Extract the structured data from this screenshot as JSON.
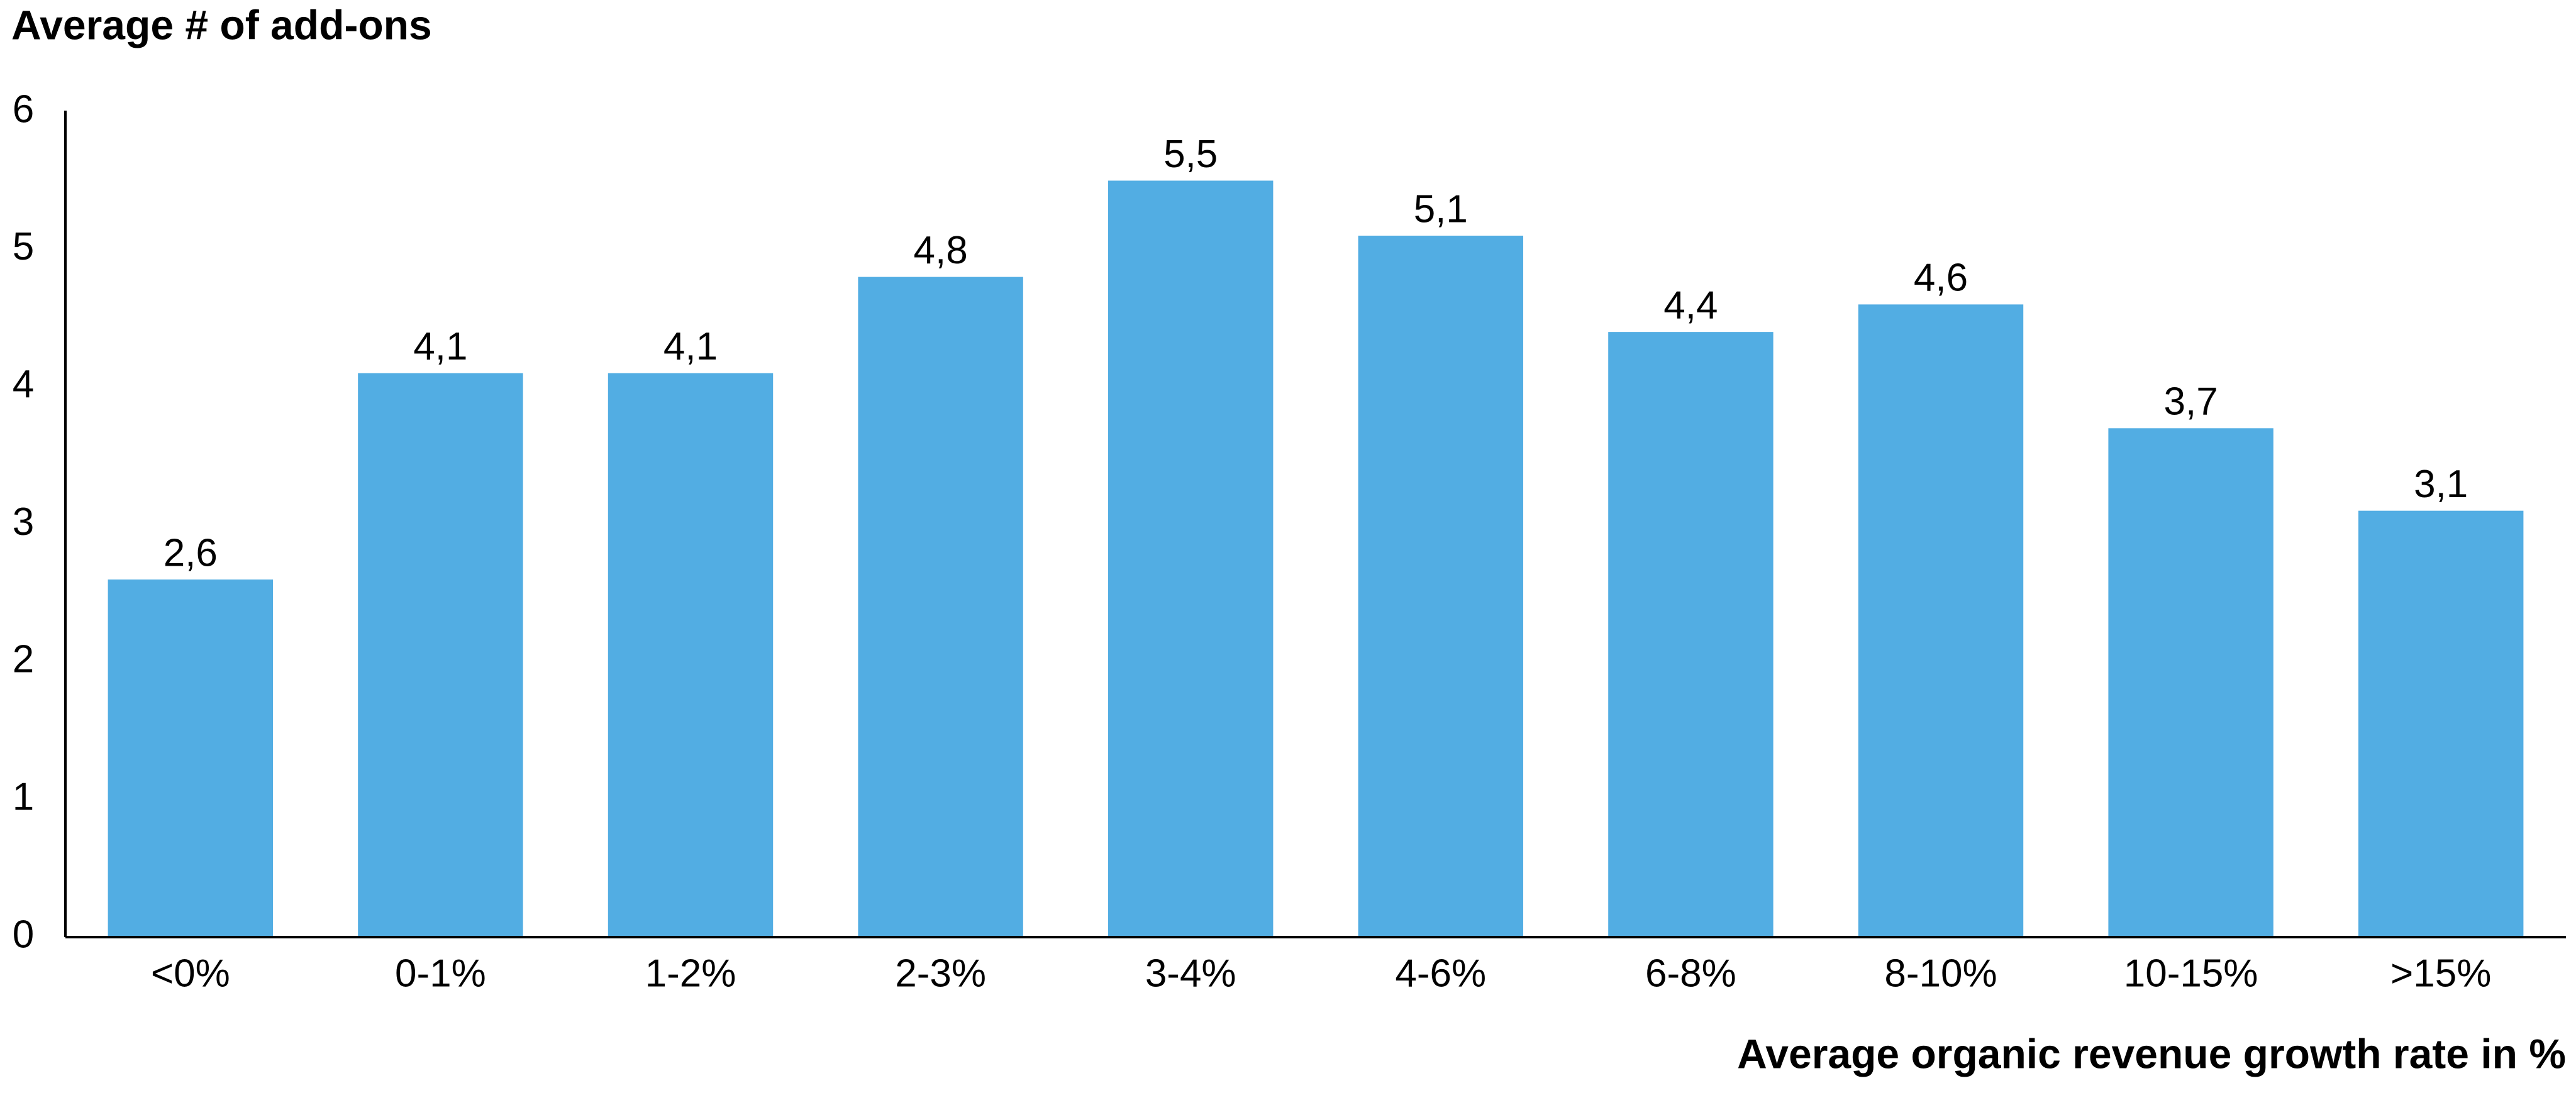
{
  "chart_data": {
    "type": "bar",
    "y_axis_title": "Average # of add-ons",
    "x_axis_title": "Average organic revenue growth rate in %",
    "categories": [
      "<0%",
      "0-1%",
      "1-2%",
      "2-3%",
      "3-4%",
      "4-6%",
      "6-8%",
      "8-10%",
      "10-15%",
      ">15%"
    ],
    "values": [
      2.6,
      4.1,
      4.1,
      4.8,
      5.5,
      5.1,
      4.4,
      4.6,
      3.7,
      3.1
    ],
    "value_labels": [
      "2,6",
      "4,1",
      "4,1",
      "4,8",
      "5,5",
      "5,1",
      "4,4",
      "4,6",
      "3,7",
      "3,1"
    ],
    "color": "#52ade3",
    "ylim": [
      0,
      6
    ],
    "yticks": [
      0,
      1,
      2,
      3,
      4,
      5,
      6
    ],
    "grid": false
  }
}
